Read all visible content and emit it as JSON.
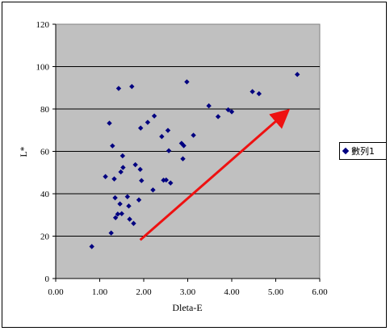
{
  "chart_data": {
    "type": "scatter",
    "title": "",
    "xlabel": "Dleta-E",
    "ylabel": "L*",
    "xlim": [
      0,
      6
    ],
    "ylim": [
      0,
      120
    ],
    "xticks": [
      "0.00",
      "1.00",
      "2.00",
      "3.00",
      "4.00",
      "5.00",
      "6.00"
    ],
    "yticks": [
      "0",
      "20",
      "40",
      "60",
      "80",
      "100",
      "120"
    ],
    "grid": "horizontal",
    "legend_position": "right",
    "plot_background": "#c0c0c0",
    "series": [
      {
        "name": "數列1",
        "color": "#000080",
        "marker": "diamond-icon",
        "points": [
          [
            0.82,
            15.1
          ],
          [
            1.13,
            48.1
          ],
          [
            1.22,
            73.3
          ],
          [
            1.26,
            21.5
          ],
          [
            1.29,
            62.6
          ],
          [
            1.33,
            47.0
          ],
          [
            1.35,
            38.1
          ],
          [
            1.36,
            28.7
          ],
          [
            1.43,
            89.7
          ],
          [
            1.41,
            30.4
          ],
          [
            1.46,
            35.2
          ],
          [
            1.48,
            50.3
          ],
          [
            1.5,
            30.6
          ],
          [
            1.52,
            57.9
          ],
          [
            1.53,
            52.4
          ],
          [
            1.63,
            38.6
          ],
          [
            1.66,
            34.2
          ],
          [
            1.68,
            28.0
          ],
          [
            1.73,
            90.6
          ],
          [
            1.77,
            26.0
          ],
          [
            1.81,
            53.7
          ],
          [
            1.89,
            37.1
          ],
          [
            1.92,
            51.5
          ],
          [
            1.93,
            71.0
          ],
          [
            1.95,
            46.2
          ],
          [
            2.09,
            73.7
          ],
          [
            2.21,
            41.8
          ],
          [
            2.24,
            76.7
          ],
          [
            2.41,
            67.0
          ],
          [
            2.45,
            46.4
          ],
          [
            2.51,
            46.5
          ],
          [
            2.55,
            69.9
          ],
          [
            2.57,
            60.3
          ],
          [
            2.61,
            45.1
          ],
          [
            2.86,
            63.8
          ],
          [
            2.89,
            56.5
          ],
          [
            2.91,
            62.7
          ],
          [
            2.98,
            92.8
          ],
          [
            3.13,
            67.6
          ],
          [
            3.48,
            81.5
          ],
          [
            3.69,
            76.4
          ],
          [
            3.92,
            79.6
          ],
          [
            4.0,
            78.7
          ],
          [
            4.47,
            88.2
          ],
          [
            4.62,
            87.2
          ],
          [
            5.49,
            96.3
          ]
        ]
      }
    ],
    "annotation": {
      "type": "arrow",
      "color": "#ee1111",
      "from": [
        1.92,
        18.2
      ],
      "to": [
        5.2,
        77.8
      ]
    }
  }
}
